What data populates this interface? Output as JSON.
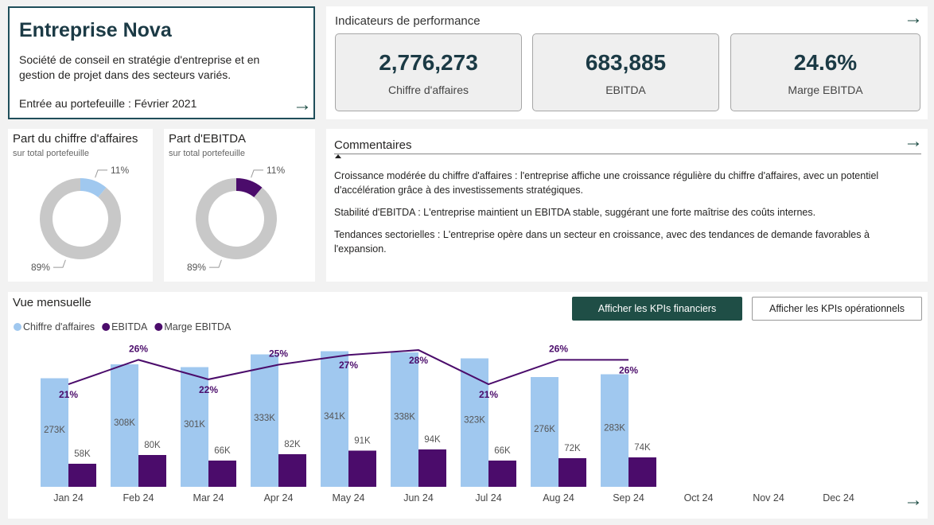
{
  "header": {
    "title": "Entreprise Nova",
    "description": "Société de conseil en stratégie d'entreprise et en gestion de projet dans des secteurs variés.",
    "entry": "Entrée au portefeuille : Février 2021"
  },
  "kpis": {
    "title": "Indicateurs de performance",
    "cards": [
      {
        "value": "2,776,273",
        "label": "Chiffre d'affaires"
      },
      {
        "value": "683,885",
        "label": "EBITDA"
      },
      {
        "value": "24.6%",
        "label": "Marge EBITDA"
      }
    ]
  },
  "comments": {
    "title": "Commentaires",
    "paragraphs": [
      "Croissance modérée du chiffre d'affaires : l'entreprise affiche une croissance régulière du chiffre d'affaires, avec un potentiel d'accélération grâce à des investissements stratégiques.",
      "Stabilité d'EBITDA : L'entreprise maintient un EBITDA stable, suggérant une forte maîtrise des coûts internes.",
      "Tendances sectorielles : L'entreprise opère dans un secteur en croissance, avec des tendances de demande favorables à l'expansion."
    ]
  },
  "buttons": [
    "Afficher les KPIs financiers",
    "Afficher les KPIs opérationnels"
  ],
  "chart_data": [
    {
      "type": "donut",
      "title": "Part du chiffre d'affaires",
      "subtitle": "sur total portefeuille",
      "values": [
        11,
        89
      ],
      "value_labels": [
        "11%",
        "89%"
      ],
      "colors": [
        "#a0c8ef",
        "#c8c8c8"
      ]
    },
    {
      "type": "donut",
      "title": "Part d'EBITDA",
      "subtitle": "sur total portefeuille",
      "values": [
        11,
        89
      ],
      "value_labels": [
        "11%",
        "89%"
      ],
      "colors": [
        "#4b0c6b",
        "#c8c8c8"
      ]
    },
    {
      "type": "combo",
      "title": "Vue mensuelle",
      "categories": [
        "Jan 24",
        "Feb 24",
        "Mar 24",
        "Apr 24",
        "May 24",
        "Jun 24",
        "Jul 24",
        "Aug 24",
        "Sep 24",
        "Oct 24",
        "Nov 24",
        "Dec 24"
      ],
      "series": [
        {
          "name": "Chiffre d'affaires",
          "type": "bar",
          "color": "#a0c8ef",
          "values": [
            273000,
            308000,
            301000,
            333000,
            341000,
            338000,
            323000,
            276000,
            283000,
            null,
            null,
            null
          ],
          "value_labels": [
            "273K",
            "308K",
            "301K",
            "333K",
            "341K",
            "338K",
            "323K",
            "276K",
            "283K",
            null,
            null,
            null
          ]
        },
        {
          "name": "EBITDA",
          "type": "bar",
          "color": "#4b0c6b",
          "values": [
            58000,
            80000,
            66000,
            82000,
            91000,
            94000,
            66000,
            72000,
            74000,
            null,
            null,
            null
          ],
          "value_labels": [
            "58K",
            "80K",
            "66K",
            "82K",
            "91K",
            "94K",
            "66K",
            "72K",
            "74K",
            null,
            null,
            null
          ]
        },
        {
          "name": "Marge EBITDA",
          "type": "line",
          "axis": "y2",
          "color": "#4b0c6b",
          "values": [
            21,
            26,
            22,
            25,
            27,
            28,
            21,
            26,
            26,
            null,
            null,
            null
          ],
          "value_labels": [
            "21%",
            "26%",
            "22%",
            "25%",
            "27%",
            "28%",
            "21%",
            "26%",
            "26%",
            null,
            null,
            null
          ]
        }
      ],
      "ylim": [
        0,
        350000
      ],
      "y2lim": [
        0,
        28.5
      ]
    }
  ]
}
